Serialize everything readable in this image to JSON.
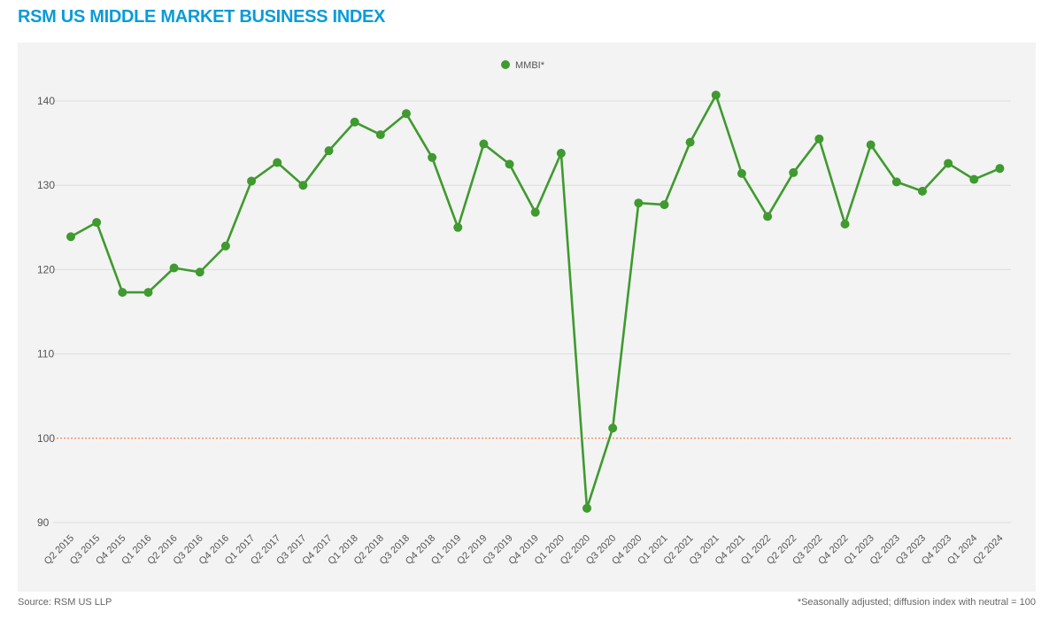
{
  "title": "RSM US MIDDLE MARKET BUSINESS INDEX",
  "source": "Source: RSM US LLP",
  "footnote": "*Seasonally adjusted; diffusion index with neutral = 100",
  "colors": {
    "series": "#3f9a2f",
    "reference": "#f07a3a",
    "title": "#0a9bd8",
    "grid": "#dcdcdc"
  },
  "chart_data": {
    "type": "line",
    "title": "RSM US MIDDLE MARKET BUSINESS INDEX",
    "xlabel": "",
    "ylabel": "",
    "ylim": [
      88,
      147
    ],
    "yticks": [
      90,
      100,
      110,
      120,
      130,
      140
    ],
    "grid": true,
    "legend_placement": "top-center",
    "reference_line": {
      "y": 100,
      "style": "dotted"
    },
    "categories": [
      "Q2 2015",
      "Q3 2015",
      "Q4 2015",
      "Q1 2016",
      "Q2 2016",
      "Q3 2016",
      "Q4 2016",
      "Q1 2017",
      "Q2 2017",
      "Q3 2017",
      "Q4 2017",
      "Q1 2018",
      "Q2 2018",
      "Q3 2018",
      "Q4 2018",
      "Q1 2019",
      "Q2 2019",
      "Q3 2019",
      "Q4 2019",
      "Q1 2020",
      "Q2 2020",
      "Q3 2020",
      "Q4 2020",
      "Q1 2021",
      "Q2 2021",
      "Q3 2021",
      "Q4 2021",
      "Q1 2022",
      "Q2 2022",
      "Q3 2022",
      "Q4 2022",
      "Q1 2023",
      "Q2 2023",
      "Q3 2023",
      "Q4 2023",
      "Q1 2024",
      "Q2 2024"
    ],
    "series": [
      {
        "name": "MMBI*",
        "values": [
          123.9,
          125.6,
          117.3,
          117.3,
          120.2,
          119.7,
          122.8,
          130.5,
          132.7,
          130.0,
          134.1,
          137.5,
          136.0,
          138.5,
          133.3,
          125.0,
          134.9,
          132.5,
          126.8,
          133.8,
          91.7,
          101.2,
          127.9,
          127.7,
          135.1,
          140.7,
          131.4,
          126.3,
          131.5,
          135.5,
          125.4,
          134.8,
          130.4,
          129.3,
          132.6,
          130.7,
          132.0
        ]
      }
    ]
  }
}
